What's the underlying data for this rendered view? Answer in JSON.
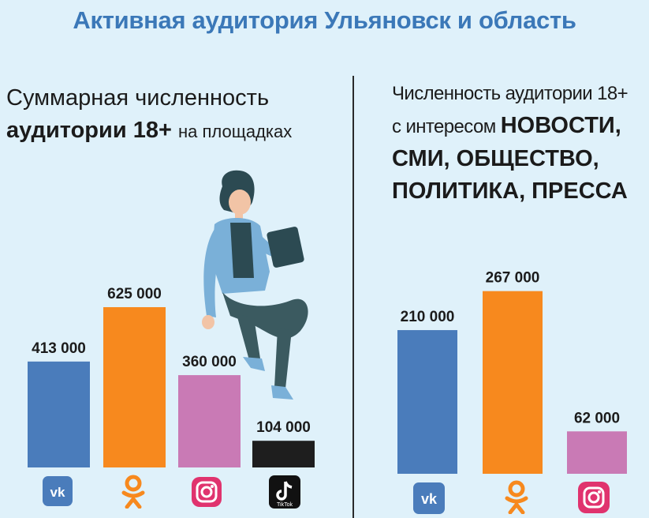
{
  "title": "Активная аудитория Ульяновск и область",
  "left_panel": {
    "line1": "Суммарная численность",
    "line2_bold": "аудитории 18+",
    "line2_rest": "на площадках"
  },
  "right_panel": {
    "line1": "Численность аудитории 18+",
    "line2_normal": "с интересом",
    "line2_bold": "НОВОСТИ,",
    "line3": "СМИ, ОБЩЕСТВО,",
    "line4": "ПОЛИТИКА, ПРЕССА"
  },
  "chart_data": [
    {
      "type": "bar",
      "title": "Суммарная численность аудитории 18+ на площадках",
      "categories": [
        "vk-icon",
        "ok-icon",
        "instagram-icon",
        "tiktok-icon"
      ],
      "values": [
        413000,
        625000,
        360000,
        104000
      ],
      "value_labels": [
        "413 000",
        "625 000",
        "360 000",
        "104 000"
      ],
      "colors": [
        "#4a7cbb",
        "#f7891e",
        "#c97ab5",
        "#1e1e1e"
      ]
    },
    {
      "type": "bar",
      "title": "Численность аудитории 18+ с интересом НОВОСТИ, СМИ, ОБЩЕСТВО, ПОЛИТИКА, ПРЕССА",
      "categories": [
        "vk-icon",
        "ok-icon",
        "instagram-icon"
      ],
      "values": [
        210000,
        267000,
        62000
      ],
      "value_labels": [
        "210 000",
        "267 000",
        "62 000"
      ],
      "colors": [
        "#4a7cbb",
        "#f7891e",
        "#c97ab5"
      ]
    }
  ],
  "icons": {
    "vk_color": "#4a7cbb",
    "ok_color": "#f7891e",
    "instagram_color": "#e0336e",
    "tiktok_color": "#111111",
    "tiktok_text": "TikTok"
  }
}
